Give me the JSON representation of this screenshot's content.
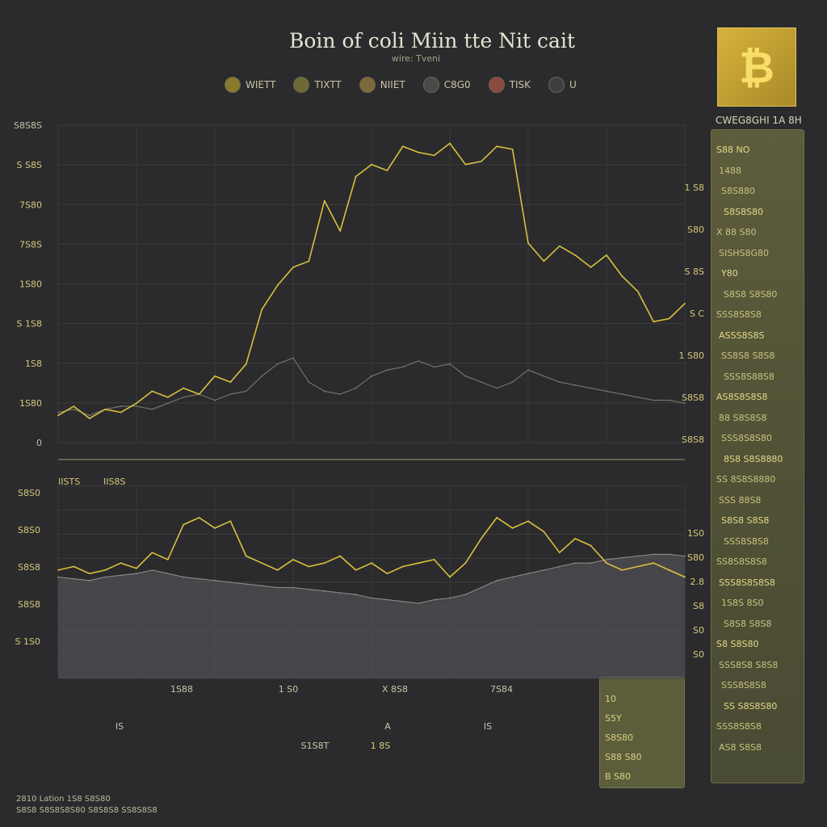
{
  "header": {
    "title": "Boin of coli Miin tte Nit cait",
    "subtitle": "wire: Tveni"
  },
  "legend": [
    {
      "label": "WIETT",
      "color": "#8a7a2e"
    },
    {
      "label": "TIXTT",
      "color": "#6e6a36"
    },
    {
      "label": "NIIET",
      "color": "#7c6a3a"
    },
    {
      "label": "C8G0",
      "color": "#4a4a4a"
    },
    {
      "label": "TISK",
      "color": "#8a4a40"
    },
    {
      "label": "U",
      "color": "#3f3f41"
    }
  ],
  "coin_logo": {
    "symbol": "₿",
    "color": "#d6b23c"
  },
  "side_panel": {
    "title": "CWEG8GHI 1A 8H",
    "rows": [
      "S88 NO",
      "1488",
      "S8S880",
      "S8S8S80",
      "X 88 S80",
      "SISHS8G80",
      "Y80",
      "S8S8 S8S80",
      "SSS8S8S8",
      "ASSS8S8S",
      "SS8S8 S8S8",
      "SSS8S88S8",
      "AS8S8S8S8",
      "88 S8S8S8",
      "SSS8S8S80",
      "8S8 S8S8880",
      "SS 8S8S8880",
      "SSS 88S8",
      "S8S8 S8S8",
      "SSS8S8S8",
      "SS8S8S8S8",
      "SSS8S8S8S8",
      "1S8S 8S0",
      "S8S8 S8S8",
      "S8 S8S80",
      "SSS8S8 S8S8",
      "SSS8S8S8",
      "SS S8S8S80",
      "SSS8S8S8",
      "AS8 S8S8"
    ]
  },
  "mini_panel": {
    "rows": [
      "10",
      "S5Y",
      "S8S80",
      "S88 S80",
      "B  S80"
    ]
  },
  "footer": {
    "line1": "2810 Lation 1S8 S8S80",
    "line2": "S8S8 S8S8S8S80 S8S8S8 SS8S8S8"
  },
  "chart_data": [
    {
      "type": "line",
      "title": "",
      "y_tick_labels_left": [
        "S8S8S",
        "S S8S",
        "7S80",
        "7S8S",
        "1S80",
        "S 1S8",
        "1S8",
        "1S80",
        "0"
      ],
      "y_tick_labels_right": [
        "1 S8",
        "S80",
        "S 8S",
        "S C",
        "1 S80",
        "S8S8",
        "S8S8"
      ],
      "x": [
        0,
        5,
        10,
        15,
        20,
        25,
        30,
        35,
        40,
        45,
        50,
        55,
        60,
        65,
        70,
        75,
        80,
        85,
        90,
        95,
        100,
        105,
        110,
        115,
        120,
        125,
        130,
        135,
        140,
        145,
        150,
        155,
        160,
        165,
        170,
        175,
        180,
        185,
        190,
        195,
        200
      ],
      "series": [
        {
          "color": "#d8c13c",
          "values": [
            9,
            12,
            8,
            11,
            10,
            13,
            17,
            15,
            18,
            16,
            22,
            20,
            26,
            44,
            52,
            58,
            60,
            80,
            70,
            88,
            92,
            90,
            98,
            96,
            95,
            99,
            92,
            93,
            98,
            97,
            66,
            60,
            65,
            62,
            58,
            62,
            55,
            50,
            40,
            41,
            46
          ]
        },
        {
          "color": "#77776f",
          "values": [
            10,
            11,
            9,
            11,
            12,
            12,
            11,
            13,
            15,
            16,
            14,
            16,
            17,
            22,
            26,
            28,
            20,
            17,
            16,
            18,
            22,
            24,
            25,
            27,
            25,
            26,
            22,
            20,
            18,
            20,
            24,
            22,
            20,
            19,
            18,
            17,
            16,
            15,
            14,
            14,
            13
          ]
        }
      ]
    },
    {
      "type": "area",
      "title": "",
      "legend_labels": [
        "IISTS",
        "IIS8S"
      ],
      "y_tick_labels_left": [
        "S8S0",
        "S8S0",
        "S8S8",
        "S8S8",
        "S 1S0"
      ],
      "y_tick_labels_right": [
        "1S0",
        "S80",
        "2.8",
        "S8",
        "S0",
        "S0"
      ],
      "x_tick_labels": [
        "1S88",
        "1 S0",
        "X 8S8",
        "7S84"
      ],
      "x_secondary_labels": [
        "IS",
        "A",
        "IS"
      ],
      "x_bottom_labels": [
        "S1S8T",
        "1 8S"
      ],
      "x": [
        0,
        5,
        10,
        15,
        20,
        25,
        30,
        35,
        40,
        45,
        50,
        55,
        60,
        65,
        70,
        75,
        80,
        85,
        90,
        95,
        100,
        105,
        110,
        115,
        120,
        125,
        130,
        135,
        140,
        145,
        150,
        155,
        160,
        165,
        170,
        175,
        180,
        185,
        190,
        195,
        200
      ],
      "series": [
        {
          "color": "#d8c13c",
          "values": [
            62,
            64,
            60,
            62,
            66,
            63,
            72,
            68,
            88,
            92,
            86,
            90,
            70,
            66,
            62,
            68,
            64,
            66,
            70,
            62,
            66,
            60,
            64,
            66,
            68,
            58,
            66,
            80,
            92,
            86,
            90,
            84,
            72,
            80,
            76,
            66,
            62,
            64,
            66,
            62,
            58
          ]
        },
        {
          "color": "#8c8c84",
          "values": [
            58,
            57,
            56,
            58,
            59,
            60,
            62,
            60,
            58,
            57,
            56,
            55,
            54,
            53,
            52,
            52,
            51,
            50,
            49,
            48,
            46,
            45,
            44,
            43,
            45,
            46,
            48,
            52,
            56,
            58,
            60,
            62,
            64,
            66,
            66,
            68,
            69,
            70,
            71,
            71,
            70
          ]
        }
      ]
    }
  ]
}
